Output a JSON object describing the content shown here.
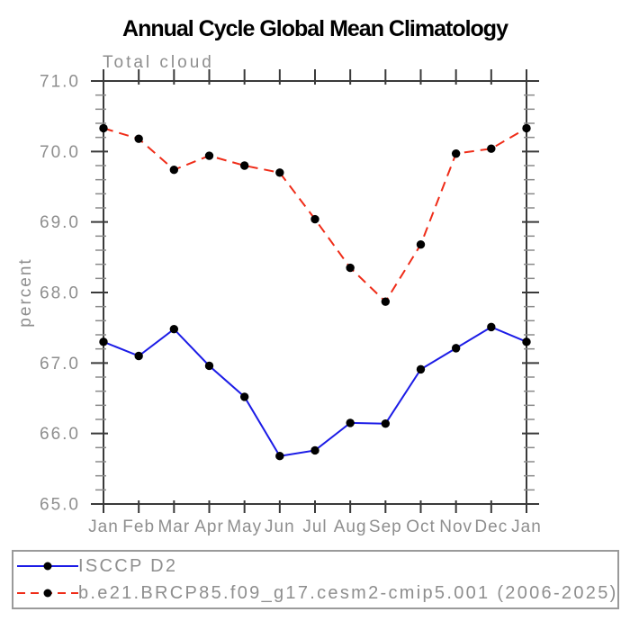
{
  "page": {
    "background": "#ffffff",
    "text_gray": "#8e8e8e",
    "axis_color": "#3a3a3a",
    "minor_tick_color": "#8a8a8a",
    "legend_border_color": "#9a9a9a"
  },
  "header": {
    "title": "Annual Cycle Global Mean Climatology"
  },
  "chart_data": {
    "type": "line",
    "title": "Annual Cycle Global Mean Climatology",
    "subtitle": "Total cloud",
    "xlabel": "",
    "ylabel": "percent",
    "categories": [
      "Jan",
      "Feb",
      "Mar",
      "Apr",
      "May",
      "Jun",
      "Jul",
      "Aug",
      "Sep",
      "Oct",
      "Nov",
      "Dec",
      "Jan"
    ],
    "ylim": [
      65.0,
      71.0
    ],
    "ytick_labels": [
      "65.0",
      "66.0",
      "67.0",
      "68.0",
      "69.0",
      "70.0",
      "71.0"
    ],
    "ytick_major_step": 1.0,
    "ytick_minor_step": 0.2,
    "grid": false,
    "legend_position": "bottom-box",
    "marker": "filled-circle",
    "marker_color": "#000000",
    "series": [
      {
        "name": "ISCCP D2",
        "color": "#1c1ce6",
        "style": "solid",
        "values": [
          67.3,
          67.1,
          67.48,
          66.96,
          66.52,
          65.68,
          65.76,
          66.15,
          66.14,
          66.91,
          67.21,
          67.51,
          67.3
        ]
      },
      {
        "name": "b.e21.BRCP85.f09_g17.cesm2-cmip5.001 (2006-2025)",
        "color": "#ef2c18",
        "style": "dashed",
        "values": [
          70.33,
          70.18,
          69.74,
          69.94,
          69.8,
          69.7,
          69.04,
          68.35,
          67.87,
          68.68,
          69.97,
          70.04,
          70.33
        ]
      }
    ]
  }
}
